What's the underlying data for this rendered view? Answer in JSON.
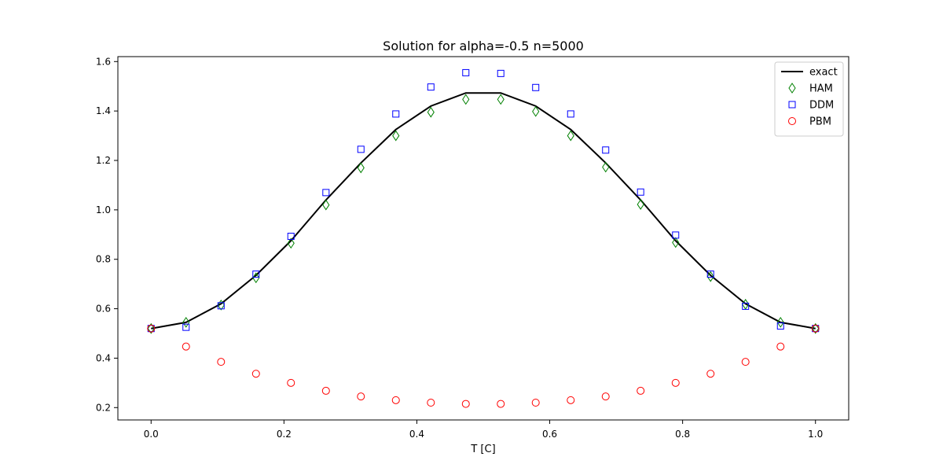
{
  "chart_data": {
    "type": "line",
    "title": "Solution for alpha=-0.5 n=5000",
    "xlabel": "T [C]",
    "ylabel": "",
    "xlim": [
      -0.05,
      1.05
    ],
    "ylim": [
      0.15,
      1.62
    ],
    "xticks": [
      0.0,
      0.2,
      0.4,
      0.6,
      0.8,
      1.0
    ],
    "xtick_labels": [
      "0.0",
      "0.2",
      "0.4",
      "0.6",
      "0.8",
      "1.0"
    ],
    "yticks": [
      0.2,
      0.4,
      0.6,
      0.8,
      1.0,
      1.2,
      1.4,
      1.6
    ],
    "ytick_labels": [
      "0.2",
      "0.4",
      "0.6",
      "0.8",
      "1.0",
      "1.2",
      "1.4",
      "1.6"
    ],
    "grid": false,
    "legend_position": "top-right",
    "x": [
      0.0,
      0.0526,
      0.1053,
      0.1579,
      0.2105,
      0.2632,
      0.3158,
      0.3684,
      0.4211,
      0.4737,
      0.5263,
      0.5789,
      0.6316,
      0.6842,
      0.7368,
      0.7895,
      0.8421,
      0.8947,
      0.9474,
      1.0
    ],
    "series": [
      {
        "name": "exact",
        "style": "line",
        "color": "#000000",
        "values": [
          0.52,
          0.545,
          0.62,
          0.735,
          0.875,
          1.04,
          1.19,
          1.325,
          1.42,
          1.473,
          1.473,
          1.42,
          1.325,
          1.19,
          1.04,
          0.875,
          0.735,
          0.62,
          0.545,
          0.52
        ]
      },
      {
        "name": "HAM",
        "style": "diamond",
        "color": "#008000",
        "values": [
          0.52,
          0.545,
          0.615,
          0.725,
          0.865,
          1.02,
          1.17,
          1.3,
          1.395,
          1.447,
          1.447,
          1.398,
          1.3,
          1.173,
          1.022,
          0.868,
          0.73,
          0.618,
          0.545,
          0.52
        ]
      },
      {
        "name": "DDM",
        "style": "square",
        "color": "#0000ff",
        "values": [
          0.52,
          0.525,
          0.612,
          0.74,
          0.893,
          1.07,
          1.245,
          1.388,
          1.497,
          1.555,
          1.552,
          1.495,
          1.388,
          1.242,
          1.072,
          0.898,
          0.74,
          0.61,
          0.53,
          0.52
        ]
      },
      {
        "name": "PBM",
        "style": "circle",
        "color": "#ff0000",
        "values": [
          0.52,
          0.447,
          0.385,
          0.337,
          0.3,
          0.268,
          0.245,
          0.23,
          0.22,
          0.215,
          0.215,
          0.22,
          0.23,
          0.245,
          0.268,
          0.3,
          0.337,
          0.385,
          0.447,
          0.52
        ]
      }
    ]
  }
}
